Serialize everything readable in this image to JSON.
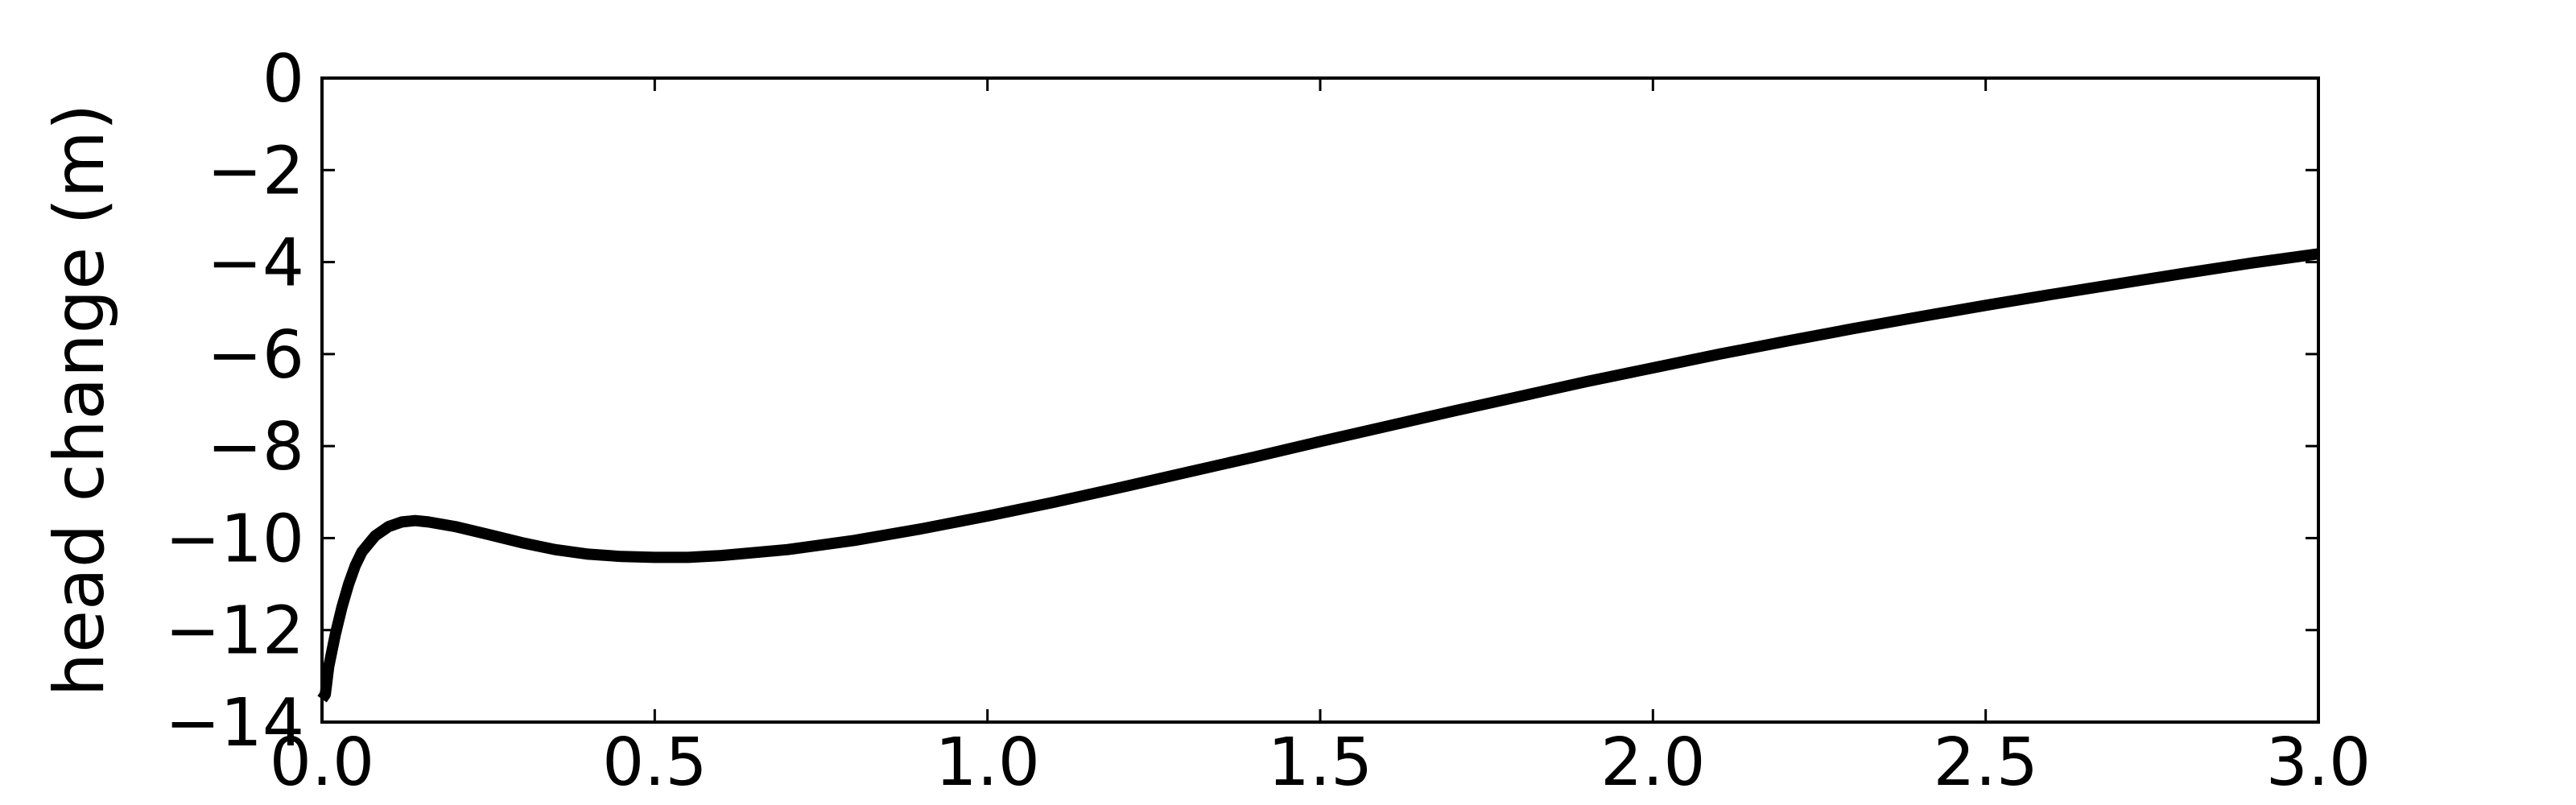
{
  "chart_data": {
    "type": "line",
    "title": "",
    "xlabel": "",
    "ylabel": "head change (m)",
    "xlim": [
      0.0,
      3.0
    ],
    "ylim": [
      -14,
      0
    ],
    "grid": false,
    "x_ticks": [
      0.0,
      0.5,
      1.0,
      1.5,
      2.0,
      2.5,
      3.0
    ],
    "x_tick_labels": [
      "0.0",
      "0.5",
      "1.0",
      "1.5",
      "2.0",
      "2.5",
      "3.0"
    ],
    "y_ticks": [
      0,
      -2,
      -4,
      -6,
      -8,
      -10,
      -12,
      -14
    ],
    "y_tick_labels": [
      "0",
      "−2",
      "−4",
      "−6",
      "−8",
      "−10",
      "−12",
      "−14"
    ],
    "series": [
      {
        "color": "#000000",
        "x": [
          0.0,
          0.005,
          0.01,
          0.02,
          0.03,
          0.04,
          0.05,
          0.06,
          0.08,
          0.1,
          0.12,
          0.14,
          0.16,
          0.2,
          0.25,
          0.3,
          0.35,
          0.4,
          0.45,
          0.5,
          0.55,
          0.6,
          0.7,
          0.8,
          0.9,
          1.0,
          1.1,
          1.2,
          1.3,
          1.4,
          1.5,
          1.6,
          1.7,
          1.8,
          1.9,
          2.0,
          2.1,
          2.2,
          2.3,
          2.4,
          2.5,
          2.6,
          2.7,
          2.8,
          2.9,
          3.0
        ],
        "values": [
          -13.5,
          -13.4,
          -12.8,
          -12.1,
          -11.5,
          -11.0,
          -10.6,
          -10.3,
          -9.95,
          -9.75,
          -9.65,
          -9.62,
          -9.65,
          -9.75,
          -9.92,
          -10.1,
          -10.25,
          -10.35,
          -10.4,
          -10.42,
          -10.42,
          -10.38,
          -10.25,
          -10.05,
          -9.8,
          -9.52,
          -9.22,
          -8.9,
          -8.57,
          -8.24,
          -7.9,
          -7.57,
          -7.24,
          -6.92,
          -6.6,
          -6.3,
          -6.0,
          -5.72,
          -5.45,
          -5.19,
          -4.94,
          -4.7,
          -4.47,
          -4.24,
          -4.02,
          -3.82
        ]
      }
    ]
  }
}
